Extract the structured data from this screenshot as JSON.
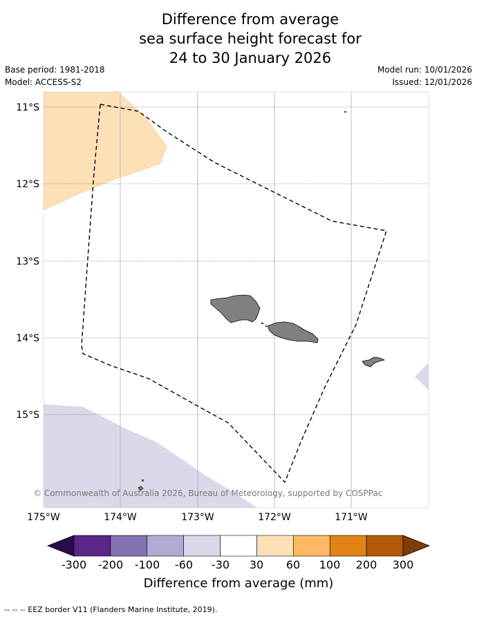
{
  "title": {
    "line1": "Difference from average",
    "line2": "sea surface height forecast for",
    "line3": "24 to 30 January 2026"
  },
  "meta": {
    "base_period": "Base period: 1981-2018",
    "model": "Model: ACCESS-S2",
    "model_run": "Model run: 10/01/2026",
    "issued": "Issued: 12/01/2026"
  },
  "map": {
    "lat_labels": [
      "11°S",
      "12°S",
      "13°S",
      "14°S",
      "15°S"
    ],
    "lon_labels": [
      "175°W",
      "174°W",
      "173°W",
      "172°W",
      "171°W"
    ],
    "copyright": "© Commonwealth of Australia 2026, Bureau of Meteorology, supported by COSPPac"
  },
  "colorbar": {
    "ticks": [
      "-300",
      "-200",
      "-100",
      "-60",
      "-30",
      "30",
      "60",
      "100",
      "200",
      "300"
    ],
    "colors": [
      "#2d0a4b",
      "#5a2688",
      "#8273ae",
      "#b2aad2",
      "#d9d9ea",
      "#ffffff",
      "#fee0b6",
      "#fdb863",
      "#e08214",
      "#b35806",
      "#7f3b08"
    ],
    "label": "Difference from average (mm)"
  },
  "footnote": "--  --  -- EEZ border V11 (Flanders Marine Institute, 2019).",
  "colors": {
    "anomaly_positive_light": "#fee0b6",
    "anomaly_negative_light": "#d9d9ea",
    "land": "#808080",
    "eez_border": "#000000"
  }
}
